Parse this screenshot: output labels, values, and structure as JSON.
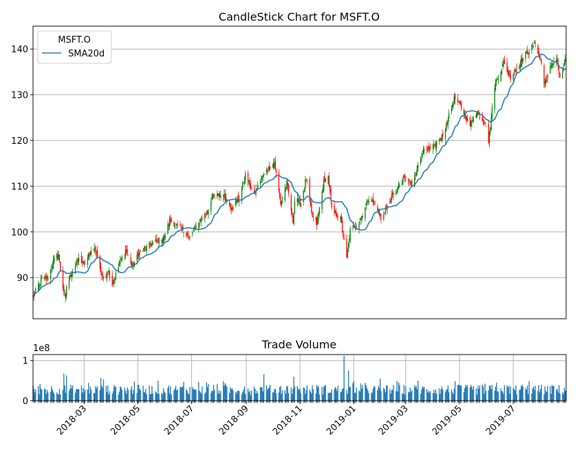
{
  "colors": {
    "up": "#008000",
    "down": "#ff0000",
    "sma": "#1f77b4",
    "volume": "#1f77b4",
    "grid": "#b0b0b0"
  },
  "chart_data": [
    {
      "type": "candlestick",
      "title": "CandleStick Chart for MSFT.O",
      "xlabel": "",
      "ylabel": "",
      "ylim": [
        81,
        145
      ],
      "yticks": [
        90,
        100,
        110,
        120,
        130,
        140
      ],
      "xticks_shown": false,
      "grid": "horizontal",
      "legend": {
        "placement": "top-left",
        "title": "MSFT.O",
        "entries": [
          {
            "label": "SMA20d",
            "color": "#1f77b4"
          }
        ]
      },
      "close_keypoints": [
        [
          "2018-01-02",
          85.9
        ],
        [
          "2018-01-08",
          88.2
        ],
        [
          "2018-01-12",
          89.6
        ],
        [
          "2018-01-19",
          90.0
        ],
        [
          "2018-01-26",
          94.1
        ],
        [
          "2018-01-31",
          95.0
        ],
        [
          "2018-02-02",
          91.8
        ],
        [
          "2018-02-05",
          88.0
        ],
        [
          "2018-02-08",
          85.0
        ],
        [
          "2018-02-09",
          88.2
        ],
        [
          "2018-02-14",
          90.8
        ],
        [
          "2018-02-23",
          94.1
        ],
        [
          "2018-03-01",
          92.9
        ],
        [
          "2018-03-12",
          96.8
        ],
        [
          "2018-03-16",
          94.6
        ],
        [
          "2018-03-22",
          89.8
        ],
        [
          "2018-03-29",
          91.3
        ],
        [
          "2018-04-02",
          88.5
        ],
        [
          "2018-04-10",
          92.9
        ],
        [
          "2018-04-17",
          96.1
        ],
        [
          "2018-04-25",
          92.3
        ],
        [
          "2018-05-01",
          95.0
        ],
        [
          "2018-05-15",
          97.3
        ],
        [
          "2018-05-31",
          98.8
        ],
        [
          "2018-06-06",
          102.5
        ],
        [
          "2018-06-14",
          101.4
        ],
        [
          "2018-06-22",
          100.4
        ],
        [
          "2018-06-28",
          98.6
        ],
        [
          "2018-07-06",
          101.2
        ],
        [
          "2018-07-19",
          104.4
        ],
        [
          "2018-07-24",
          107.7
        ],
        [
          "2018-07-27",
          108.0
        ],
        [
          "2018-08-06",
          108.1
        ],
        [
          "2018-08-15",
          105.3
        ],
        [
          "2018-08-24",
          107.5
        ],
        [
          "2018-08-31",
          112.3
        ],
        [
          "2018-09-10",
          108.2
        ],
        [
          "2018-09-18",
          111.7
        ],
        [
          "2018-09-28",
          114.4
        ],
        [
          "2018-10-03",
          115.2
        ],
        [
          "2018-10-10",
          106.2
        ],
        [
          "2018-10-17",
          110.7
        ],
        [
          "2018-10-24",
          102.3
        ],
        [
          "2018-10-26",
          106.9
        ],
        [
          "2018-11-02",
          106.4
        ],
        [
          "2018-11-08",
          111.8
        ],
        [
          "2018-11-14",
          104.0
        ],
        [
          "2018-11-20",
          101.7
        ],
        [
          "2018-11-28",
          111.1
        ],
        [
          "2018-12-03",
          112.1
        ],
        [
          "2018-12-07",
          104.8
        ],
        [
          "2018-12-17",
          102.9
        ],
        [
          "2018-12-24",
          94.1
        ],
        [
          "2018-12-28",
          100.4
        ],
        [
          "2019-01-07",
          101.9
        ],
        [
          "2019-01-18",
          107.7
        ],
        [
          "2019-01-28",
          105.1
        ],
        [
          "2019-02-01",
          102.8
        ],
        [
          "2019-02-15",
          108.2
        ],
        [
          "2019-02-28",
          112.0
        ],
        [
          "2019-03-08",
          110.5
        ],
        [
          "2019-03-20",
          117.5
        ],
        [
          "2019-03-29",
          117.9
        ],
        [
          "2019-04-12",
          120.9
        ],
        [
          "2019-04-25",
          129.2
        ],
        [
          "2019-05-01",
          127.9
        ],
        [
          "2019-05-13",
          123.4
        ],
        [
          "2019-05-20",
          126.2
        ],
        [
          "2019-05-31",
          123.7
        ],
        [
          "2019-06-03",
          119.8
        ],
        [
          "2019-06-10",
          132.1
        ],
        [
          "2019-06-20",
          136.9
        ],
        [
          "2019-06-28",
          133.9
        ],
        [
          "2019-07-15",
          138.9
        ],
        [
          "2019-07-26",
          141.3
        ],
        [
          "2019-08-02",
          136.9
        ],
        [
          "2019-08-05",
          132.2
        ],
        [
          "2019-08-12",
          135.8
        ],
        [
          "2019-08-19",
          138.4
        ],
        [
          "2019-08-23",
          133.4
        ],
        [
          "2019-08-30",
          137.9
        ]
      ],
      "series": [
        {
          "name": "SMA20d",
          "window": 20,
          "of": "close"
        }
      ]
    },
    {
      "type": "bar",
      "title": "Trade Volume",
      "xlabel": "",
      "ylabel": "",
      "y_offset_label": "1e8",
      "ylim": [
        0,
        1.15
      ],
      "yticks": [
        0,
        1
      ],
      "x_range": [
        "2018-01-02",
        "2019-08-30"
      ],
      "grid": "both",
      "xtick_labels": [
        "2018-03",
        "2018-05",
        "2018-07",
        "2018-09",
        "2018-11",
        "2019-01",
        "2019-03",
        "2019-05",
        "2019-07"
      ],
      "volume_level_1e8": {
        "typical_low": 0.15,
        "typical_high": 0.4,
        "peaks": [
          [
            "2018-02-06",
            0.68
          ],
          [
            "2018-02-09",
            0.63
          ],
          [
            "2018-03-20",
            0.57
          ],
          [
            "2018-03-23",
            0.53
          ],
          [
            "2018-04-27",
            0.48
          ],
          [
            "2018-06-22",
            0.47
          ],
          [
            "2018-09-21",
            0.66
          ],
          [
            "2018-10-25",
            0.6
          ],
          [
            "2018-12-21",
            1.12
          ],
          [
            "2018-12-26",
            0.75
          ],
          [
            "2019-01-31",
            0.55
          ],
          [
            "2019-03-15",
            0.5
          ],
          [
            "2019-04-26",
            0.49
          ],
          [
            "2019-07-19",
            0.48
          ]
        ]
      }
    }
  ]
}
